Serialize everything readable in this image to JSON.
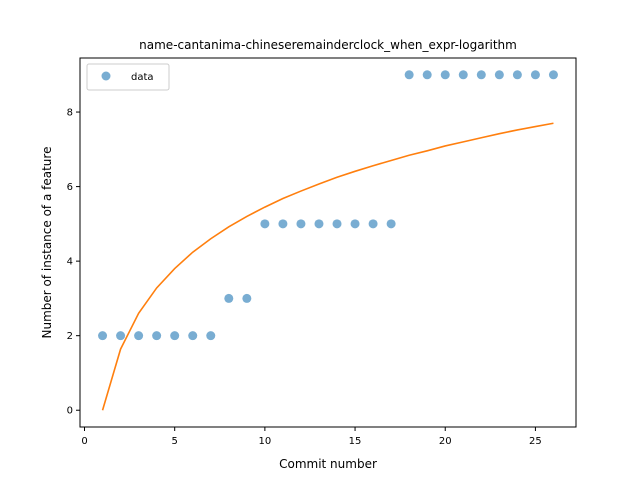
{
  "chart_data": {
    "type": "scatter",
    "title": "name-cantanima-chineseremainderclock_when_expr-logarithm",
    "xlabel": "Commit number",
    "ylabel": "Number of instance of a feature",
    "xlim": [
      -0.25,
      27.25
    ],
    "ylim": [
      -0.45,
      9.45
    ],
    "xticks": [
      0,
      5,
      10,
      15,
      20,
      25
    ],
    "yticks": [
      0,
      2,
      4,
      6,
      8
    ],
    "xtick_labels": [
      "0",
      "5",
      "10",
      "15",
      "20",
      "25"
    ],
    "ytick_labels": [
      "0",
      "2",
      "4",
      "6",
      "8"
    ],
    "grid": false,
    "legend_position": "upper-left",
    "series": [
      {
        "name": "data",
        "kind": "scatter",
        "color": "#1f77b4",
        "x": [
          1,
          2,
          3,
          4,
          5,
          6,
          7,
          8,
          9,
          10,
          11,
          12,
          13,
          14,
          15,
          16,
          17,
          18,
          19,
          20,
          21,
          22,
          23,
          24,
          25,
          26
        ],
        "y": [
          2,
          2,
          2,
          2,
          2,
          2,
          2,
          3,
          3,
          5,
          5,
          5,
          5,
          5,
          5,
          5,
          5,
          9,
          9,
          9,
          9,
          9,
          9,
          9,
          9,
          9
        ]
      },
      {
        "kind": "line",
        "color": "#ff7f0e",
        "x": [
          1,
          2,
          3,
          4,
          5,
          6,
          7,
          8,
          9,
          10,
          11,
          12,
          13,
          14,
          15,
          16,
          17,
          18,
          19,
          20,
          21,
          22,
          23,
          24,
          25,
          26
        ],
        "y": [
          0.0,
          1.64,
          2.6,
          3.28,
          3.8,
          4.24,
          4.6,
          4.92,
          5.2,
          5.45,
          5.68,
          5.88,
          6.07,
          6.25,
          6.41,
          6.56,
          6.7,
          6.84,
          6.96,
          7.09,
          7.2,
          7.31,
          7.42,
          7.52,
          7.61,
          7.7
        ]
      }
    ]
  }
}
